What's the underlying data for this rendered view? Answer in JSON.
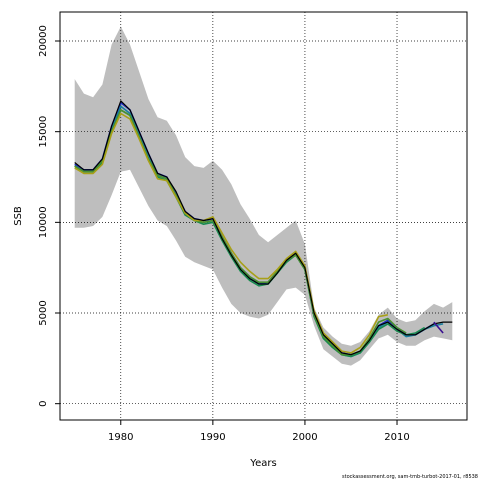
{
  "chart_data": {
    "type": "line",
    "title": "",
    "xlabel": "Years",
    "ylabel": "SSB",
    "xlim": [
      1973.4,
      2017.6
    ],
    "ylim": [
      -900,
      21600
    ],
    "xticks": [
      1980,
      1990,
      2000,
      2010
    ],
    "yticks": [
      0,
      5000,
      10000,
      15000,
      20000
    ],
    "grid": true,
    "grid_style": "dotted",
    "legend": "none",
    "credit": "stockassessment.org, sam-tmb-turbot-2017-01, r8538",
    "colors": {
      "band": "#bebebe",
      "estimate": "#000000",
      "retro": [
        "#2030c0",
        "#1a7fa0",
        "#1a8a50",
        "#4a9030",
        "#a8a018",
        "#3a1090"
      ]
    },
    "x": [
      1975,
      1976,
      1977,
      1978,
      1979,
      1980,
      1981,
      1982,
      1983,
      1984,
      1985,
      1986,
      1987,
      1988,
      1989,
      1990,
      1991,
      1992,
      1993,
      1994,
      1995,
      1996,
      1997,
      1998,
      1999,
      2000,
      2001,
      2002,
      2003,
      2004,
      2005,
      2006,
      2007,
      2008,
      2009,
      2010,
      2011,
      2012,
      2013,
      2014,
      2015,
      2016
    ],
    "band": {
      "lower": [
        9700,
        9700,
        9800,
        10300,
        11500,
        12800,
        12900,
        11900,
        10900,
        10100,
        9800,
        9000,
        8100,
        7800,
        7600,
        7400,
        6400,
        5500,
        5000,
        4800,
        4700,
        4900,
        5600,
        6300,
        6400,
        6000,
        4300,
        3000,
        2600,
        2200,
        2100,
        2400,
        3000,
        3600,
        3800,
        3400,
        3200,
        3200,
        3500,
        3700,
        3600,
        3500
      ],
      "upper": [
        17900,
        17100,
        16900,
        17600,
        19800,
        20800,
        19800,
        18300,
        16800,
        15800,
        15600,
        14800,
        13600,
        13100,
        13000,
        13400,
        12900,
        12100,
        11000,
        10200,
        9300,
        8900,
        9300,
        9700,
        10100,
        8800,
        5300,
        4200,
        3700,
        3300,
        3200,
        3400,
        4000,
        4900,
        5300,
        4700,
        4500,
        4600,
        5100,
        5500,
        5300,
        5600
      ]
    },
    "series": [
      {
        "values": [
          13200,
          12900,
          12900,
          13500,
          15300,
          16600,
          16200,
          15000,
          13800,
          12700,
          12500,
          11600,
          10600,
          10200,
          10100,
          10200,
          9200,
          8300,
          7500,
          7000,
          6600,
          6700,
          7300,
          7900,
          8300,
          7500,
          5000,
          3800,
          3300,
          2800,
          2700,
          2900,
          3500,
          4300,
          4600,
          4200,
          3800,
          3800,
          4100,
          4400,
          null,
          null
        ]
      },
      {
        "values": [
          13100,
          12800,
          12800,
          13400,
          15100,
          16400,
          16000,
          14800,
          13600,
          12600,
          12400,
          11500,
          10500,
          10100,
          10000,
          10100,
          9100,
          8200,
          7400,
          6900,
          6600,
          6600,
          7200,
          7900,
          8200,
          7400,
          4900,
          3700,
          3200,
          2700,
          2600,
          2800,
          3400,
          4200,
          4500,
          4100,
          3700,
          3800,
          4100,
          4300,
          4400,
          null
        ]
      },
      {
        "values": [
          13100,
          12800,
          12800,
          13300,
          15000,
          16200,
          15900,
          14700,
          13500,
          12500,
          12300,
          11400,
          10400,
          10100,
          9900,
          10000,
          9000,
          8100,
          7300,
          6800,
          6500,
          6600,
          7200,
          7800,
          8200,
          7400,
          4800,
          3600,
          3100,
          2700,
          2600,
          2800,
          3400,
          4100,
          4400,
          4000,
          3800,
          3900,
          4200,
          null,
          null,
          null
        ]
      },
      {
        "values": [
          13100,
          12800,
          12800,
          13400,
          15000,
          16200,
          15900,
          14700,
          13500,
          12600,
          12400,
          11500,
          10500,
          10100,
          10000,
          10100,
          9200,
          8300,
          7500,
          7000,
          6700,
          6700,
          7300,
          7900,
          8200,
          7400,
          4900,
          3700,
          3200,
          2700,
          2700,
          2900,
          3600,
          4500,
          4700,
          4200,
          3900,
          null,
          null,
          null,
          null,
          null
        ]
      },
      {
        "values": [
          13000,
          12700,
          12700,
          13200,
          14900,
          16000,
          15700,
          14600,
          13400,
          12400,
          12300,
          11400,
          10500,
          10100,
          10100,
          10300,
          9400,
          8500,
          7800,
          7300,
          6900,
          6900,
          7400,
          8000,
          8400,
          7600,
          5100,
          3900,
          3400,
          2900,
          2800,
          3100,
          3800,
          4800,
          4900,
          null,
          null,
          null,
          null,
          null,
          null,
          null
        ]
      },
      {
        "values": [
          13300,
          12900,
          12900,
          13500,
          15300,
          16700,
          16200,
          15000,
          13800,
          12700,
          12500,
          11700,
          10600,
          10200,
          10100,
          10200,
          9100,
          8200,
          7400,
          6900,
          6600,
          6600,
          7200,
          7900,
          8300,
          7500,
          5000,
          3800,
          3300,
          2800,
          2700,
          2900,
          3500,
          4300,
          4500,
          4100,
          3800,
          3800,
          4100,
          4400,
          4500,
          4500
        ]
      }
    ]
  }
}
